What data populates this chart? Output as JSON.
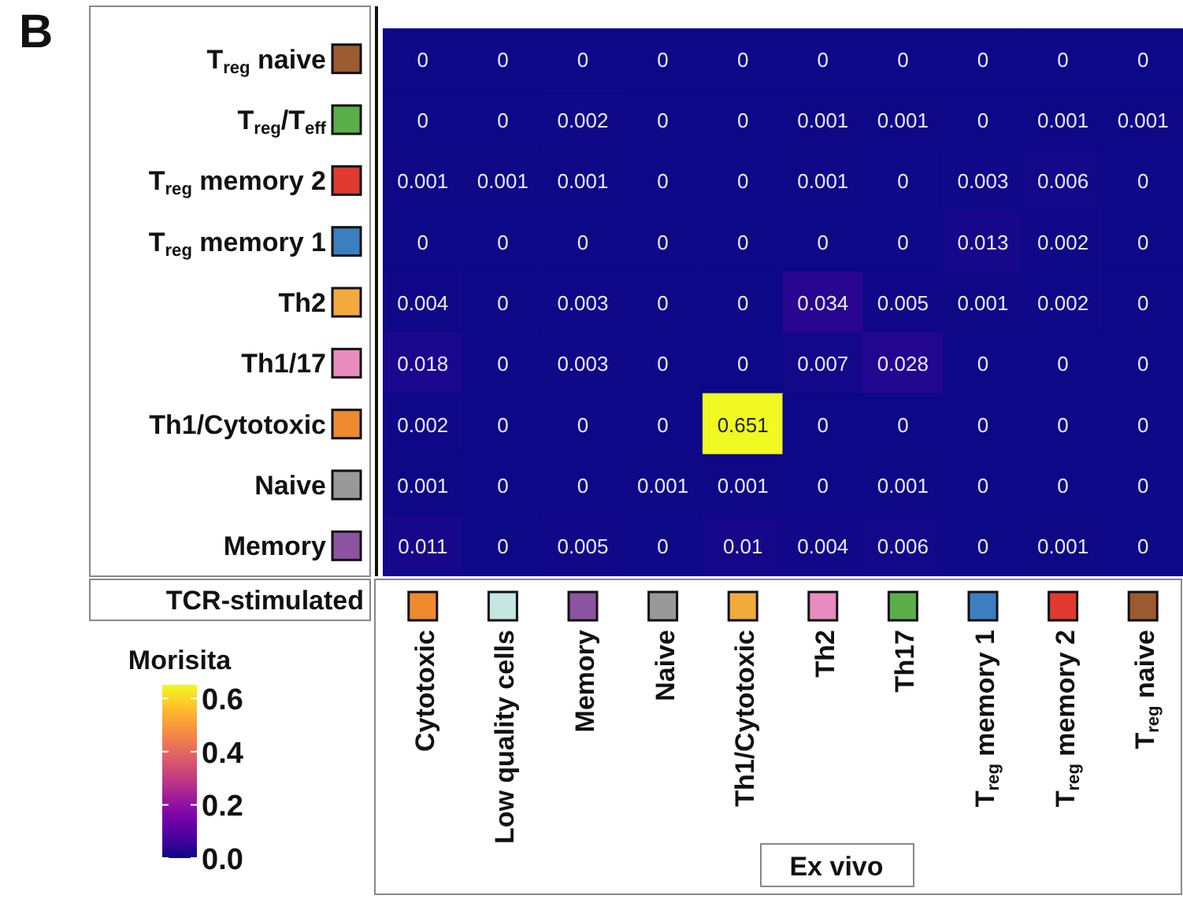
{
  "chart_data": {
    "type": "heatmap",
    "annotations": [
      "B"
    ],
    "xlabel": "Ex vivo",
    "ylabel": "TCR-stimulated",
    "clabel": "Morisita",
    "categories": [
      "Cytotoxic",
      "Low quality cells",
      "Memory",
      "Naive",
      "Th1/Cytotoxic",
      "Th2",
      "Th17",
      "T$_{reg}$ memory 1",
      "T$_{reg}$ memory 2",
      "T$_{reg}$ naive"
    ],
    "y_categories": [
      "T$_{reg}$ naive",
      "T$_{reg}$/T$_{eff}$",
      "T$_{reg}$ memory 2",
      "T$_{reg}$ memory 1",
      "Th2",
      "Th1/17",
      "Th1/Cytotoxic",
      "Naive",
      "Memory"
    ],
    "cells": [
      [
        0,
        0,
        0,
        0,
        0,
        0,
        0,
        0,
        0,
        0
      ],
      [
        0,
        0,
        0.002,
        0,
        0,
        0.001,
        0.001,
        0,
        0.001,
        0.001
      ],
      [
        0.001,
        0.001,
        0.001,
        0,
        0,
        0.001,
        0,
        0.003,
        0.006,
        0
      ],
      [
        0,
        0,
        0,
        0,
        0,
        0,
        0,
        0.013,
        0.002,
        0
      ],
      [
        0.004,
        0,
        0.003,
        0,
        0,
        0.034,
        0.005,
        0.001,
        0.002,
        0
      ],
      [
        0.018,
        0,
        0.003,
        0,
        0,
        0.007,
        0.028,
        0,
        0,
        0
      ],
      [
        0.002,
        0,
        0,
        0,
        0.651,
        0,
        0,
        0,
        0,
        0
      ],
      [
        0.001,
        0,
        0,
        0.001,
        0.001,
        0,
        0.001,
        0,
        0,
        0
      ],
      [
        0.011,
        0,
        0.005,
        0,
        0.01,
        0.004,
        0.006,
        0,
        0.001,
        0
      ]
    ],
    "clim": [
      0,
      0.651
    ],
    "cticks": [
      {
        "value": 0,
        "label": "0.0"
      },
      0.2,
      0.4,
      0.6
    ],
    "data_labels": true
  }
}
